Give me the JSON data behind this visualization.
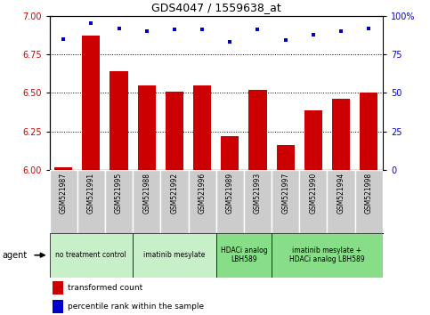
{
  "title": "GDS4047 / 1559638_at",
  "samples": [
    "GSM521987",
    "GSM521991",
    "GSM521995",
    "GSM521988",
    "GSM521992",
    "GSM521996",
    "GSM521989",
    "GSM521993",
    "GSM521997",
    "GSM521990",
    "GSM521994",
    "GSM521998"
  ],
  "bar_values": [
    6.02,
    6.87,
    6.64,
    6.55,
    6.51,
    6.55,
    6.22,
    6.52,
    6.16,
    6.39,
    6.46,
    6.5
  ],
  "percentile_values": [
    85,
    95,
    92,
    90,
    91,
    91,
    83,
    91,
    84,
    88,
    90,
    92
  ],
  "bar_color": "#cc0000",
  "scatter_color": "#0000cc",
  "ylim_left": [
    6.0,
    7.0
  ],
  "ylim_right": [
    0,
    100
  ],
  "yticks_left": [
    6.0,
    6.25,
    6.5,
    6.75,
    7.0
  ],
  "yticks_right": [
    0,
    25,
    50,
    75,
    100
  ],
  "grid_values": [
    6.25,
    6.5,
    6.75
  ],
  "agent_groups": [
    {
      "label": "no treatment control",
      "count": 3,
      "color": "#c8f0c8",
      "start": 0,
      "end": 3
    },
    {
      "label": "imatinib mesylate",
      "count": 3,
      "color": "#c8f0c8",
      "start": 3,
      "end": 6
    },
    {
      "label": "HDACi analog\nLBH589",
      "count": 2,
      "color": "#88dd88",
      "start": 6,
      "end": 8
    },
    {
      "label": "imatinib mesylate +\nHDACi analog LBH589",
      "count": 4,
      "color": "#88dd88",
      "start": 8,
      "end": 12
    }
  ],
  "agent_label": "agent",
  "legend_bar_label": "transformed count",
  "legend_scatter_label": "percentile rank within the sample",
  "tick_area_color": "#cccccc",
  "tick_area_edgecolor": "#aaaaaa"
}
